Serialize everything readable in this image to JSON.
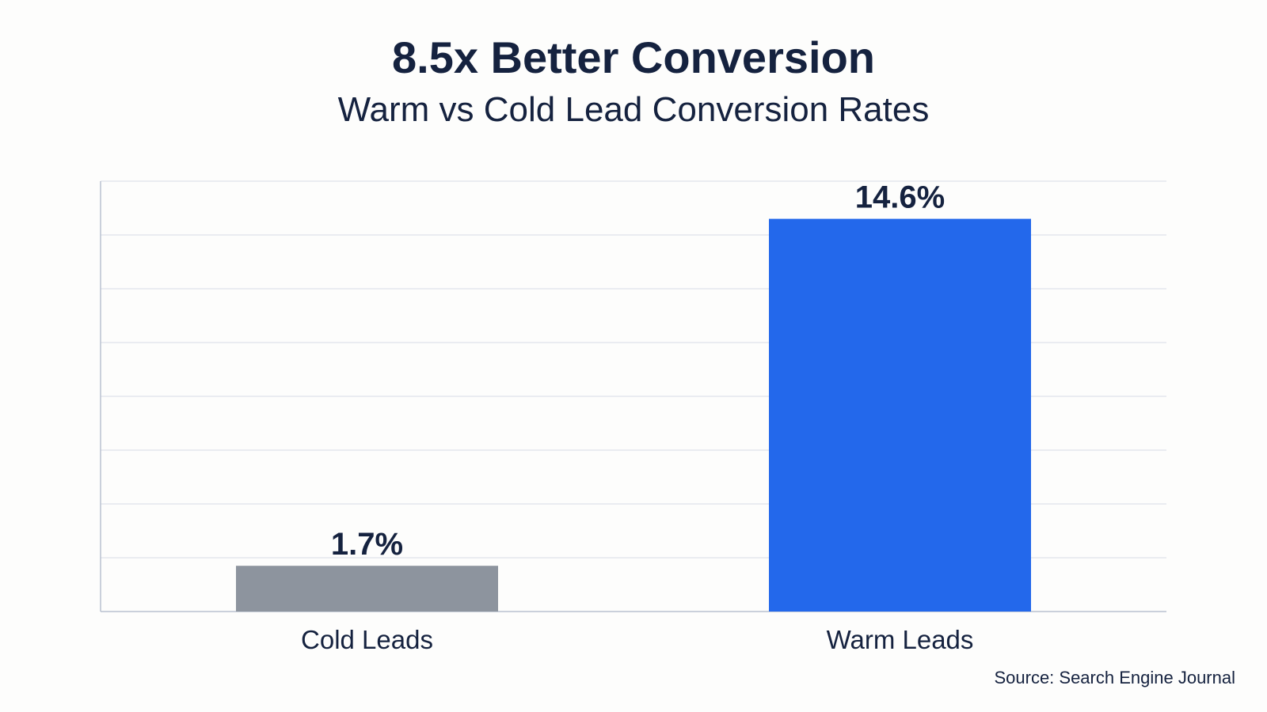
{
  "chart_data": {
    "type": "bar",
    "title": "8.5x Better Conversion",
    "subtitle": "Warm vs Cold Lead Conversion Rates",
    "categories": [
      "Cold Leads",
      "Warm Leads"
    ],
    "values": [
      1.7,
      14.6
    ],
    "data_labels": [
      "1.7%",
      "14.6%"
    ],
    "colors": [
      "#8d949e",
      "#2368eb"
    ],
    "ylim": [
      0,
      16
    ],
    "ytick_step": 2,
    "grid": true,
    "xlabel": "",
    "ylabel": "",
    "source": "Source: Search Engine Journal"
  }
}
